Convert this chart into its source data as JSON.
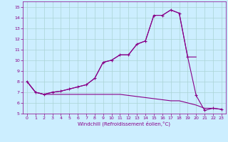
{
  "xlabel": "Windchill (Refroidissement éolien,°C)",
  "background_color": "#cceeff",
  "grid_color": "#aad4d4",
  "line_color": "#880088",
  "xlim": [
    -0.5,
    23.5
  ],
  "ylim": [
    5,
    15.5
  ],
  "yticks": [
    5,
    6,
    7,
    8,
    9,
    10,
    11,
    12,
    13,
    14,
    15
  ],
  "xticks": [
    0,
    1,
    2,
    3,
    4,
    5,
    6,
    7,
    8,
    9,
    10,
    11,
    12,
    13,
    14,
    15,
    16,
    17,
    18,
    19,
    20,
    21,
    22,
    23
  ],
  "series1_x": [
    0,
    1,
    2,
    3,
    4,
    5,
    6,
    7,
    8,
    9,
    10,
    11,
    12,
    13,
    14,
    15,
    16,
    17,
    18,
    19,
    20,
    21,
    22,
    23
  ],
  "series1_y": [
    8.0,
    7.0,
    6.8,
    7.0,
    7.1,
    7.3,
    7.5,
    7.7,
    8.3,
    9.8,
    10.0,
    10.5,
    10.5,
    11.5,
    11.8,
    14.2,
    14.2,
    14.7,
    14.4,
    10.3,
    6.7,
    5.3,
    5.5,
    5.4
  ],
  "series2_x": [
    0,
    1,
    2,
    3,
    4,
    5,
    6,
    7,
    8,
    9,
    10,
    11,
    12,
    13,
    14,
    15,
    16,
    17,
    18,
    19,
    20,
    21,
    22,
    23
  ],
  "series2_y": [
    8.0,
    7.0,
    6.8,
    6.8,
    6.8,
    6.8,
    6.8,
    6.8,
    6.8,
    6.8,
    6.8,
    6.8,
    6.7,
    6.6,
    6.5,
    6.4,
    6.3,
    6.2,
    6.2,
    6.0,
    5.8,
    5.5,
    5.5,
    5.4
  ],
  "series3_x": [
    0,
    1,
    2,
    3,
    4,
    5,
    6,
    7,
    8,
    9,
    10,
    11,
    12,
    13,
    14,
    15,
    16,
    17,
    18,
    19,
    20
  ],
  "series3_y": [
    8.0,
    7.0,
    6.8,
    7.0,
    7.1,
    7.3,
    7.5,
    7.7,
    8.3,
    9.8,
    10.0,
    10.5,
    10.5,
    11.5,
    11.8,
    14.2,
    14.2,
    14.7,
    14.4,
    10.3,
    10.3
  ]
}
